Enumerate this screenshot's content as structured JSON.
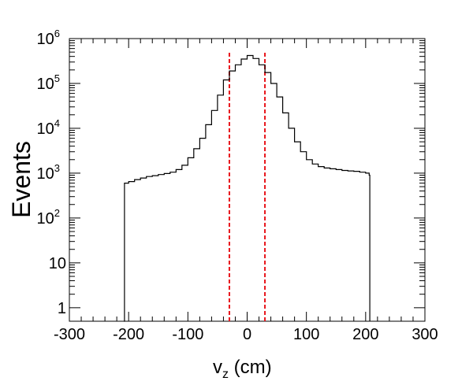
{
  "chart_data": {
    "type": "line",
    "title": "",
    "xlabel_main": "v",
    "xlabel_sub": "z",
    "xlabel_unit": " (cm)",
    "ylabel": "Events",
    "xlim": [
      -300,
      300
    ],
    "ylim": [
      0.5,
      1000000
    ],
    "yscale": "log",
    "grid": false,
    "xticks": [
      {
        "value": -300,
        "label": "-300"
      },
      {
        "value": -200,
        "label": "-200"
      },
      {
        "value": -100,
        "label": "-100"
      },
      {
        "value": 0,
        "label": "0"
      },
      {
        "value": 100,
        "label": "100"
      },
      {
        "value": 200,
        "label": "200"
      },
      {
        "value": 300,
        "label": "300"
      }
    ],
    "yticks": [
      {
        "value": 1,
        "base": "1",
        "exp": ""
      },
      {
        "value": 10,
        "base": "10",
        "exp": ""
      },
      {
        "value": 100,
        "base": "10",
        "exp": "2"
      },
      {
        "value": 1000,
        "base": "10",
        "exp": "3"
      },
      {
        "value": 10000,
        "base": "10",
        "exp": "4"
      },
      {
        "value": 100000,
        "base": "10",
        "exp": "5"
      },
      {
        "value": 1000000,
        "base": "10",
        "exp": "6"
      }
    ],
    "series": [
      {
        "line_color": "#000000",
        "style": "step",
        "points": [
          [
            -208,
            0.5
          ],
          [
            -207,
            600
          ],
          [
            -200,
            650
          ],
          [
            -190,
            720
          ],
          [
            -180,
            780
          ],
          [
            -170,
            840
          ],
          [
            -160,
            880
          ],
          [
            -150,
            930
          ],
          [
            -140,
            980
          ],
          [
            -130,
            1050
          ],
          [
            -120,
            1200
          ],
          [
            -110,
            1500
          ],
          [
            -100,
            2200
          ],
          [
            -90,
            3500
          ],
          [
            -80,
            6000
          ],
          [
            -70,
            12000
          ],
          [
            -60,
            25000
          ],
          [
            -50,
            55000
          ],
          [
            -40,
            120000
          ],
          [
            -30,
            190000
          ],
          [
            -20,
            260000
          ],
          [
            -10,
            350000
          ],
          [
            0,
            420000
          ],
          [
            10,
            360000
          ],
          [
            20,
            260000
          ],
          [
            30,
            175000
          ],
          [
            40,
            100000
          ],
          [
            50,
            50000
          ],
          [
            60,
            22000
          ],
          [
            70,
            10000
          ],
          [
            80,
            5000
          ],
          [
            90,
            3000
          ],
          [
            100,
            2000
          ],
          [
            110,
            1600
          ],
          [
            120,
            1400
          ],
          [
            130,
            1300
          ],
          [
            140,
            1250
          ],
          [
            150,
            1200
          ],
          [
            160,
            1150
          ],
          [
            170,
            1120
          ],
          [
            180,
            1100
          ],
          [
            190,
            1050
          ],
          [
            200,
            1000
          ],
          [
            206,
            900
          ],
          [
            207,
            0.5
          ]
        ]
      }
    ],
    "vlines": [
      {
        "x": -30,
        "color": "#e8151b",
        "dash": "dashed",
        "top": 500000
      },
      {
        "x": 30,
        "color": "#e8151b",
        "dash": "dashed",
        "top": 500000
      }
    ]
  }
}
